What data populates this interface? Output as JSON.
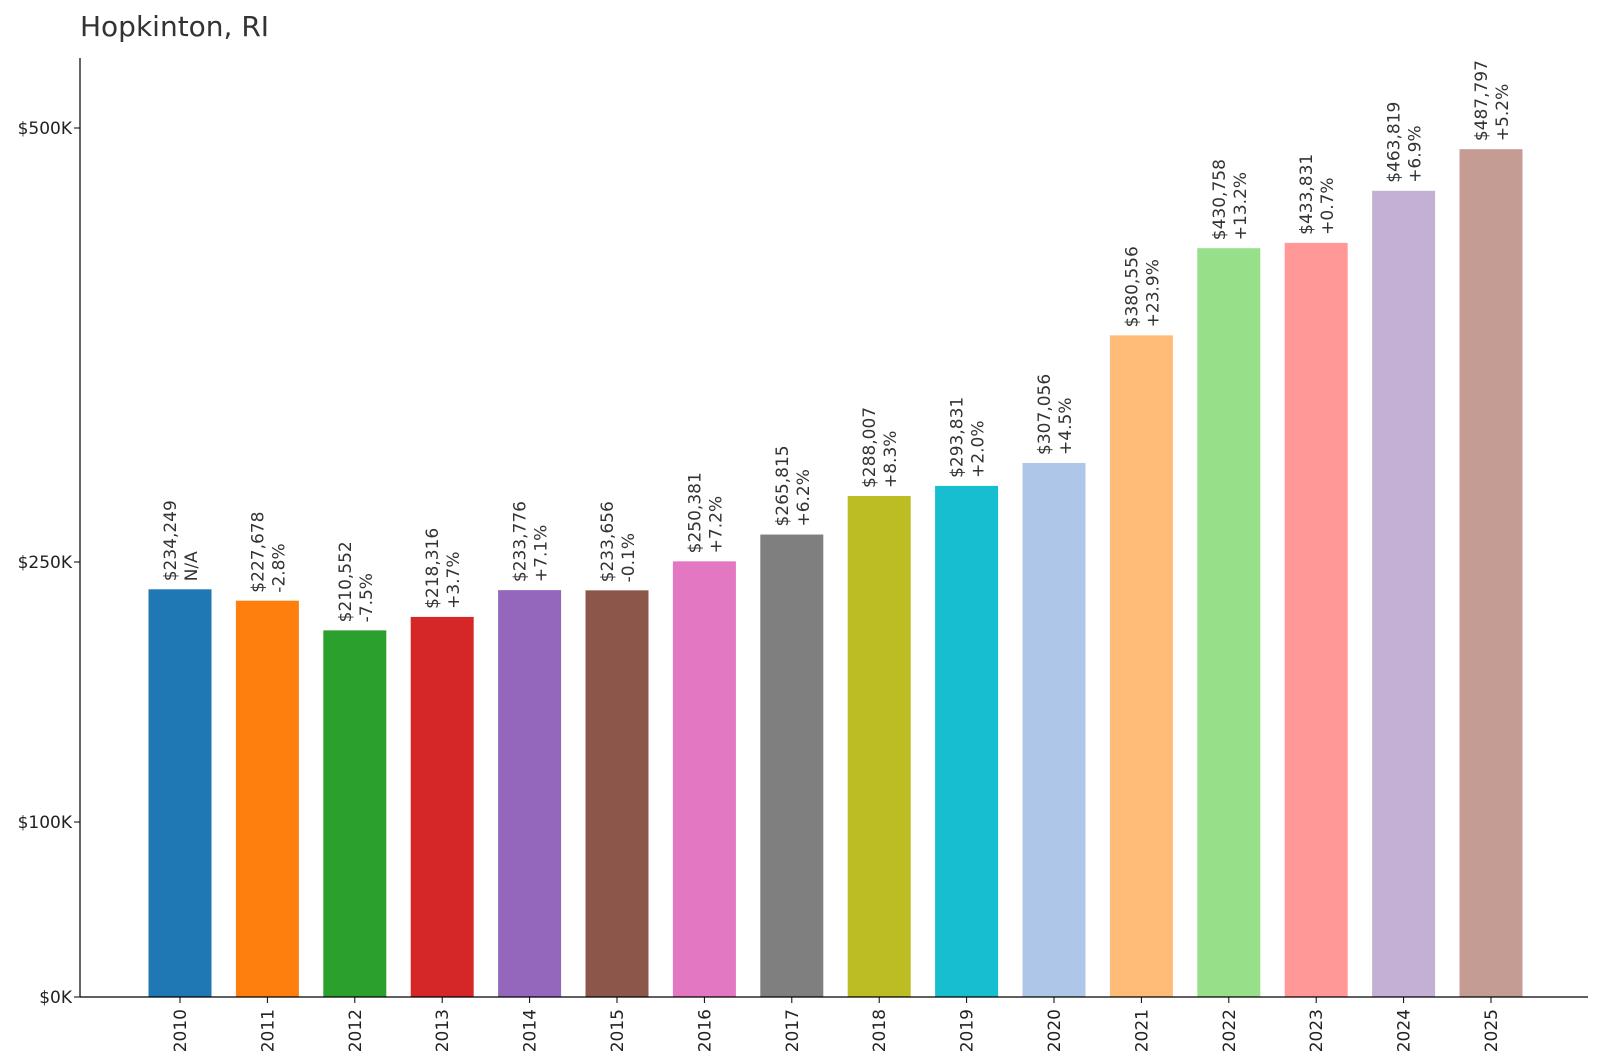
{
  "chart_data": {
    "type": "bar",
    "title": "Hopkinton, RI",
    "xlabel": "",
    "ylabel": "",
    "categories": [
      "2010",
      "2011",
      "2012",
      "2013",
      "2014",
      "2015",
      "2016",
      "2017",
      "2018",
      "2019",
      "2020",
      "2021",
      "2022",
      "2023",
      "2024",
      "2025"
    ],
    "values": [
      234249,
      227678,
      210552,
      218316,
      233776,
      233656,
      250381,
      265815,
      288007,
      293831,
      307056,
      380556,
      430758,
      433831,
      463819,
      487797
    ],
    "value_labels": [
      "$234,249",
      "$227,678",
      "$210,552",
      "$218,316",
      "$233,776",
      "$233,656",
      "$250,381",
      "$265,815",
      "$288,007",
      "$293,831",
      "$307,056",
      "$380,556",
      "$430,758",
      "$433,831",
      "$463,819",
      "$487,797"
    ],
    "change_labels": [
      "N/A",
      "-2.8%",
      "-7.5%",
      "+3.7%",
      "+7.1%",
      "-0.1%",
      "+7.2%",
      "+6.2%",
      "+8.3%",
      "+2.0%",
      "+4.5%",
      "+23.9%",
      "+13.2%",
      "+0.7%",
      "+6.9%",
      "+5.2%"
    ],
    "colors": [
      "#1f77b4",
      "#ff7f0e",
      "#2ca02c",
      "#d62728",
      "#9467bd",
      "#8c564b",
      "#e377c2",
      "#7f7f7f",
      "#bcbd22",
      "#17becf",
      "#aec7e8",
      "#ffbb78",
      "#98df8a",
      "#ff9896",
      "#c5b0d5",
      "#c49c94"
    ],
    "yticks": [
      {
        "value": 0,
        "label": "$0K"
      },
      {
        "value": 100000,
        "label": "$100K"
      },
      {
        "value": 250000,
        "label": "$250K"
      },
      {
        "value": 500000,
        "label": "$500K"
      }
    ],
    "ylim": [
      0,
      540000
    ],
    "grid": false,
    "legend": "none"
  }
}
